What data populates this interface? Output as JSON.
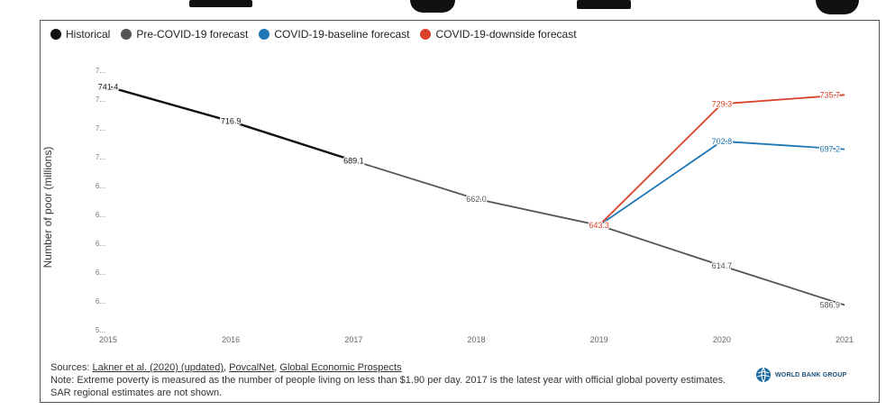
{
  "legend": [
    {
      "label": "Historical",
      "color": "#111111"
    },
    {
      "label": "Pre-COVID-19 forecast",
      "color": "#555555"
    },
    {
      "label": "COVID-19-baseline forecast",
      "color": "#1f77b4"
    },
    {
      "label": "COVID-19-downside forecast",
      "color": "#d9412b"
    }
  ],
  "chart_data": {
    "type": "line",
    "ylabel": "Number of poor (millions)",
    "xlabel": "",
    "x": [
      2015,
      2016,
      2017,
      2018,
      2019,
      2020,
      2021
    ],
    "ylim": [
      570,
      755
    ],
    "y_ticks": [
      "7...",
      "7...",
      "7...",
      "7...",
      "6...",
      "6...",
      "6...",
      "6...",
      "6...",
      "5..."
    ],
    "grid": false,
    "legend_position": "top-left",
    "series": [
      {
        "name": "Historical",
        "color": "#111111",
        "points": [
          [
            2015,
            741.4
          ],
          [
            2016,
            716.9
          ],
          [
            2017,
            689.1
          ]
        ],
        "labels": [
          "741.4",
          "716.9",
          "689.1"
        ]
      },
      {
        "name": "Pre-COVID-19 forecast",
        "color": "#555555",
        "points": [
          [
            2017,
            689.1
          ],
          [
            2018,
            662.0
          ],
          [
            2019,
            643.3
          ],
          [
            2020,
            614.7
          ],
          [
            2021,
            586.9
          ]
        ],
        "labels": [
          "",
          "662.0",
          "",
          "614.7",
          "586.9"
        ]
      },
      {
        "name": "COVID-19-baseline forecast",
        "color": "#1f77b4",
        "points": [
          [
            2019,
            643.3
          ],
          [
            2020,
            702.8
          ],
          [
            2021,
            697.2
          ]
        ],
        "labels": [
          "",
          "702.8",
          "697.2"
        ]
      },
      {
        "name": "COVID-19-downside forecast",
        "color": "#d9412b",
        "points": [
          [
            2019,
            643.3
          ],
          [
            2020,
            729.3
          ],
          [
            2021,
            735.7
          ]
        ],
        "labels": [
          "643.3",
          "729.3",
          "735.7"
        ]
      }
    ]
  },
  "footer": {
    "sources_prefix": "Sources: ",
    "source_1": "Lakner et al. (2020) (updated)",
    "sep_1": ", ",
    "source_2": "PovcalNet",
    "sep_2": ", ",
    "source_3": "Global Economic Prospects",
    "note": "Note: Extreme poverty is measured as the number of people living on less than $1.90 per day. 2017 is the latest year with official global poverty estimates. SAR regional estimates are not shown."
  },
  "logo": {
    "text": "WORLD BANK GROUP"
  }
}
